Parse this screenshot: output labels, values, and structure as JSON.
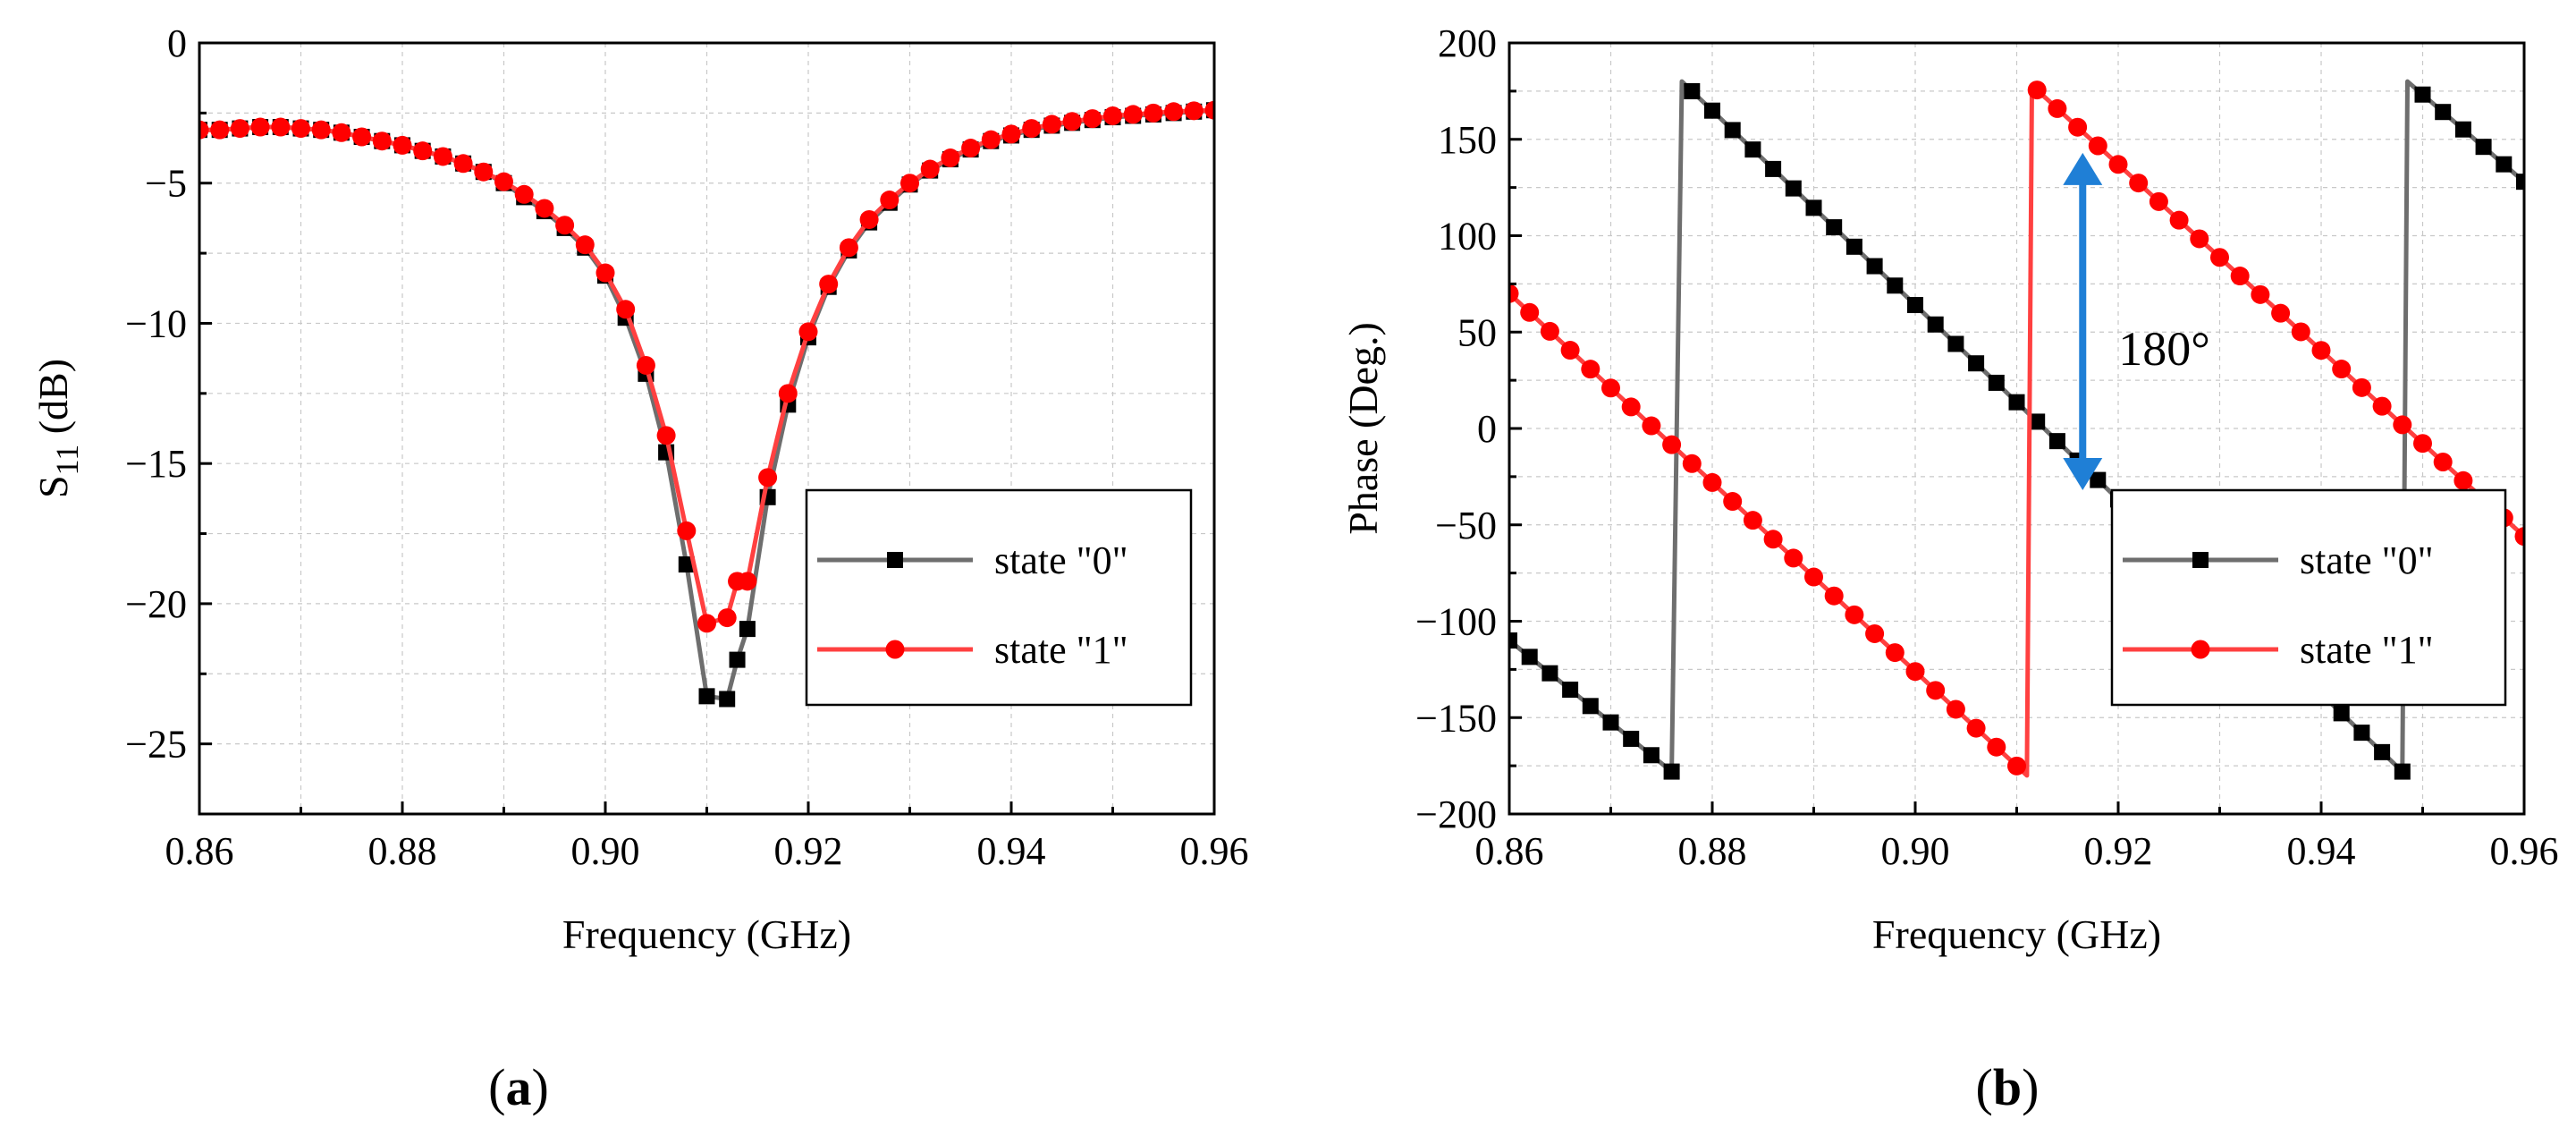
{
  "colors": {
    "state0": "#6e6e6e",
    "state0_marker": "#000000",
    "state1": "#ff4040",
    "state1_marker": "#ff0000",
    "arrow": "#1f7fd6"
  },
  "chart_data": [
    {
      "type": "line",
      "panel": "(a)",
      "panel_letter": "a",
      "xlabel": "Frequency (GHz)",
      "ylabel_main": "S",
      "ylabel_sub": "11",
      "ylabel_unit": " (dB)",
      "xlim": [
        0.86,
        0.96
      ],
      "ylim": [
        -27.5,
        0
      ],
      "xticks": [
        0.86,
        0.88,
        0.9,
        0.92,
        0.94,
        0.96
      ],
      "xtick_labels": [
        "0.86",
        "0.88",
        "0.90",
        "0.92",
        "0.94",
        "0.96"
      ],
      "yticks": [
        0,
        -5,
        -10,
        -15,
        -20,
        -25
      ],
      "ytick_labels": [
        "0",
        "−5",
        "−10",
        "−15",
        "−20",
        "−25"
      ],
      "legend_position": "lower-right",
      "series": [
        {
          "name": "state \"0\"",
          "marker": "square",
          "x": [
            0.86,
            0.862,
            0.864,
            0.866,
            0.868,
            0.87,
            0.872,
            0.874,
            0.876,
            0.878,
            0.88,
            0.882,
            0.884,
            0.886,
            0.888,
            0.89,
            0.892,
            0.894,
            0.896,
            0.898,
            0.9,
            0.902,
            0.904,
            0.906,
            0.908,
            0.91,
            0.912,
            0.913,
            0.914,
            0.916,
            0.918,
            0.92,
            0.922,
            0.924,
            0.926,
            0.928,
            0.93,
            0.932,
            0.934,
            0.936,
            0.938,
            0.94,
            0.942,
            0.944,
            0.946,
            0.948,
            0.95,
            0.952,
            0.954,
            0.956,
            0.958,
            0.96
          ],
          "y": [
            -3.1,
            -3.1,
            -3.05,
            -3.0,
            -3.0,
            -3.05,
            -3.1,
            -3.2,
            -3.35,
            -3.5,
            -3.65,
            -3.85,
            -4.05,
            -4.3,
            -4.6,
            -5.0,
            -5.5,
            -6.0,
            -6.6,
            -7.3,
            -8.3,
            -9.8,
            -11.8,
            -14.6,
            -18.6,
            -23.3,
            -23.4,
            -22.0,
            -20.9,
            -16.2,
            -12.9,
            -10.5,
            -8.7,
            -7.4,
            -6.4,
            -5.7,
            -5.05,
            -4.55,
            -4.15,
            -3.8,
            -3.5,
            -3.3,
            -3.1,
            -2.95,
            -2.85,
            -2.75,
            -2.65,
            -2.6,
            -2.55,
            -2.5,
            -2.45,
            -2.4
          ]
        },
        {
          "name": "state \"1\"",
          "marker": "circle",
          "x": [
            0.86,
            0.862,
            0.864,
            0.866,
            0.868,
            0.87,
            0.872,
            0.874,
            0.876,
            0.878,
            0.88,
            0.882,
            0.884,
            0.886,
            0.888,
            0.89,
            0.892,
            0.894,
            0.896,
            0.898,
            0.9,
            0.902,
            0.904,
            0.906,
            0.908,
            0.91,
            0.912,
            0.913,
            0.914,
            0.916,
            0.918,
            0.92,
            0.922,
            0.924,
            0.926,
            0.928,
            0.93,
            0.932,
            0.934,
            0.936,
            0.938,
            0.94,
            0.942,
            0.944,
            0.946,
            0.948,
            0.95,
            0.952,
            0.954,
            0.956,
            0.958,
            0.96
          ],
          "y": [
            -3.1,
            -3.1,
            -3.05,
            -3.0,
            -3.0,
            -3.05,
            -3.1,
            -3.2,
            -3.35,
            -3.5,
            -3.65,
            -3.85,
            -4.05,
            -4.3,
            -4.6,
            -4.95,
            -5.4,
            -5.9,
            -6.5,
            -7.2,
            -8.2,
            -9.5,
            -11.5,
            -14.0,
            -17.4,
            -20.7,
            -20.5,
            -19.2,
            -19.2,
            -15.5,
            -12.5,
            -10.3,
            -8.6,
            -7.3,
            -6.3,
            -5.6,
            -5.0,
            -4.5,
            -4.1,
            -3.75,
            -3.45,
            -3.25,
            -3.05,
            -2.9,
            -2.8,
            -2.7,
            -2.6,
            -2.55,
            -2.5,
            -2.45,
            -2.42,
            -2.4
          ]
        }
      ]
    },
    {
      "type": "line",
      "panel": "(b)",
      "panel_letter": "b",
      "xlabel": "Frequency (GHz)",
      "ylabel": "Phase (Deg.)",
      "xlim": [
        0.86,
        0.96
      ],
      "ylim": [
        -200,
        200
      ],
      "xticks": [
        0.86,
        0.88,
        0.9,
        0.92,
        0.94,
        0.96
      ],
      "xtick_labels": [
        "0.86",
        "0.88",
        "0.90",
        "0.92",
        "0.94",
        "0.96"
      ],
      "yticks": [
        200,
        150,
        100,
        50,
        0,
        -50,
        -100,
        -150,
        -200
      ],
      "ytick_labels": [
        "200",
        "150",
        "100",
        "50",
        "0",
        "−50",
        "−100",
        "−150",
        "−200"
      ],
      "legend_position": "lower-right",
      "annotation": {
        "text": "180°",
        "arrow_x": 0.9165,
        "arrow_from": -32,
        "arrow_to": 143
      },
      "series": [
        {
          "name": "state \"0\"",
          "marker": "square",
          "phase_segments": [
            {
              "x0": 0.86,
              "y0": -110,
              "x1": 0.876,
              "y1": -178
            },
            {
              "x0": 0.877,
              "y0": 180,
              "x1": 0.948,
              "y1": -178
            },
            {
              "x0": 0.9485,
              "y0": 180,
              "x1": 0.96,
              "y1": 128
            }
          ],
          "marker_step": 0.002
        },
        {
          "name": "state \"1\"",
          "marker": "circle",
          "phase_segments": [
            {
              "x0": 0.86,
              "y0": 70,
              "x1": 0.911,
              "y1": -180
            },
            {
              "x0": 0.9115,
              "y0": 178,
              "x1": 0.96,
              "y1": -56
            }
          ],
          "marker_step": 0.002
        }
      ]
    }
  ]
}
